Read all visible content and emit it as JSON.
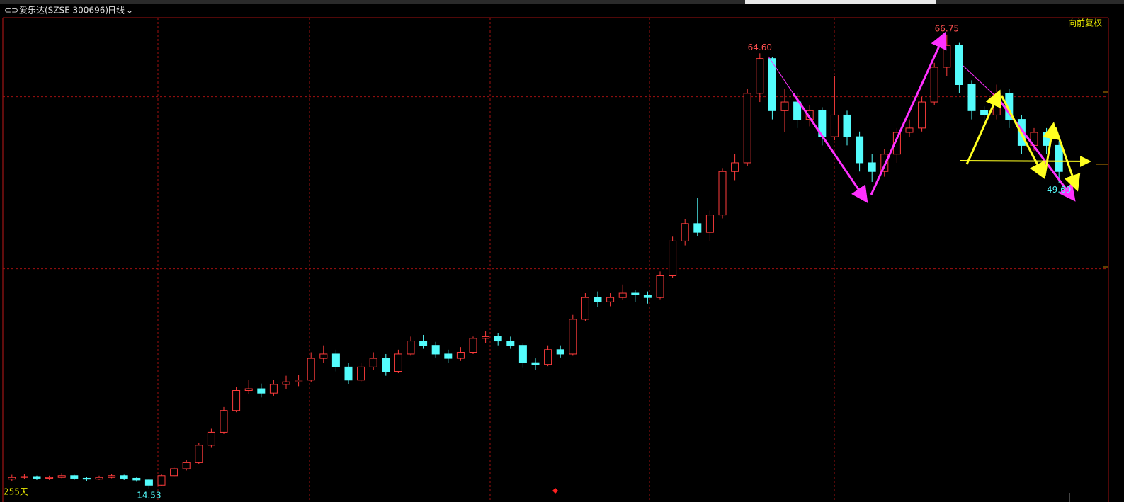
{
  "chart_data": {
    "type": "candlestick",
    "title": "爱乐达(SZSE 300696)",
    "period": "日线",
    "adjust": "向前复权",
    "span": "255天",
    "up_color": "#ff3c3c",
    "down_color": "#54fcfc",
    "ylim": [
      13.7,
      68.7
    ],
    "ygrid": [
      59.6,
      39.8
    ],
    "open": [
      15.6,
      15.8,
      15.9,
      15.7,
      15.8,
      16.0,
      15.7,
      15.6,
      15.8,
      16.0,
      15.7,
      15.5,
      14.9,
      16.0,
      16.8,
      17.5,
      19.5,
      21.0,
      23.5,
      25.8,
      26.0,
      25.5,
      26.5,
      26.8,
      27.0,
      29.5,
      30.0,
      28.5,
      27.0,
      28.5,
      29.5,
      28.0,
      30.0,
      31.5,
      31.0,
      30.0,
      29.5,
      30.2,
      31.8,
      32.0,
      31.5,
      31.0,
      29.0,
      28.8,
      30.5,
      30.0,
      34.0,
      36.5,
      36.0,
      36.5,
      37.0,
      36.8,
      36.5,
      39.0,
      43.0,
      45.0,
      44.0,
      46.0,
      51.0,
      52.0,
      60.0,
      64.0,
      58.0,
      59.0,
      57.0,
      58.0,
      55.0,
      57.5,
      55.0,
      52.0,
      51.0,
      53.0,
      55.5,
      56.0,
      59.0,
      63.0,
      65.5,
      61.0,
      58.0,
      57.5,
      60.0,
      57.0,
      54.0,
      55.5,
      54.0
    ],
    "high": [
      16.1,
      16.2,
      16.0,
      16.0,
      16.3,
      16.1,
      15.9,
      16.0,
      16.2,
      16.1,
      15.8,
      15.6,
      16.2,
      17.0,
      17.8,
      19.8,
      21.4,
      23.9,
      26.2,
      27.0,
      26.6,
      27.0,
      27.5,
      27.6,
      30.2,
      31.0,
      30.5,
      29.0,
      29.0,
      30.2,
      30.0,
      30.5,
      32.0,
      32.2,
      31.4,
      30.5,
      30.8,
      32.0,
      32.6,
      32.4,
      32.0,
      31.2,
      29.5,
      31.0,
      31.0,
      34.5,
      37.0,
      37.2,
      37.0,
      38.0,
      37.4,
      37.2,
      39.5,
      43.5,
      45.5,
      48.0,
      46.5,
      51.4,
      53.0,
      60.5,
      64.6,
      64.2,
      60.5,
      60.0,
      58.6,
      58.4,
      62.0,
      58.0,
      55.6,
      53.0,
      53.6,
      56.0,
      57.0,
      59.6,
      63.5,
      66.75,
      65.8,
      61.5,
      58.5,
      61.0,
      60.5,
      57.5,
      56.0,
      56.0,
      54.5
    ],
    "low": [
      15.4,
      15.6,
      15.5,
      15.5,
      15.7,
      15.5,
      15.4,
      15.5,
      15.7,
      15.5,
      15.3,
      14.53,
      14.8,
      15.9,
      16.6,
      17.3,
      19.2,
      20.8,
      23.3,
      25.4,
      25.0,
      25.2,
      26.0,
      26.3,
      26.8,
      29.0,
      28.0,
      26.5,
      26.8,
      28.2,
      27.5,
      27.8,
      29.8,
      30.6,
      29.6,
      29.0,
      29.2,
      30.0,
      31.3,
      31.0,
      30.6,
      28.4,
      28.2,
      28.6,
      29.6,
      29.8,
      33.8,
      35.4,
      35.5,
      36.2,
      36.0,
      35.8,
      36.3,
      38.8,
      42.5,
      43.6,
      43.0,
      45.6,
      50.0,
      51.6,
      59.0,
      57.0,
      55.5,
      56.0,
      56.2,
      54.0,
      54.6,
      54.0,
      51.0,
      49.8,
      50.4,
      52.0,
      55.0,
      55.6,
      58.6,
      62.0,
      60.0,
      57.0,
      56.0,
      57.0,
      56.0,
      53.0,
      53.4,
      53.0,
      49.69
    ],
    "close": [
      15.8,
      15.9,
      15.7,
      15.8,
      16.0,
      15.7,
      15.6,
      15.8,
      16.0,
      15.7,
      15.5,
      14.9,
      16.0,
      16.8,
      17.5,
      19.5,
      21.0,
      23.5,
      25.8,
      26.0,
      25.5,
      26.5,
      26.8,
      27.0,
      29.5,
      30.0,
      28.5,
      27.0,
      28.5,
      29.5,
      28.0,
      30.0,
      31.5,
      31.0,
      30.0,
      29.5,
      30.2,
      31.8,
      32.0,
      31.5,
      31.0,
      29.0,
      28.8,
      30.5,
      30.0,
      34.0,
      36.5,
      36.0,
      36.5,
      37.0,
      36.8,
      36.5,
      39.0,
      43.0,
      45.0,
      44.0,
      46.0,
      51.0,
      52.0,
      60.0,
      64.0,
      58.0,
      59.0,
      57.0,
      58.0,
      55.0,
      57.5,
      55.0,
      52.0,
      51.0,
      53.0,
      55.5,
      56.0,
      59.0,
      63.0,
      65.5,
      61.0,
      58.0,
      57.5,
      60.0,
      57.0,
      54.0,
      55.5,
      54.0,
      51.0
    ],
    "annotations": [
      {
        "value": 64.6,
        "label": "64.60",
        "kind": "high",
        "color": "#ff5050"
      },
      {
        "value": 66.75,
        "label": "66.75",
        "kind": "high",
        "color": "#ff5050"
      },
      {
        "value": 14.53,
        "label": "14.53",
        "kind": "low",
        "color": "#54fcfc"
      },
      {
        "value": 49.69,
        "label": "49.69",
        "kind": "low",
        "color": "#54fcfc"
      }
    ]
  }
}
